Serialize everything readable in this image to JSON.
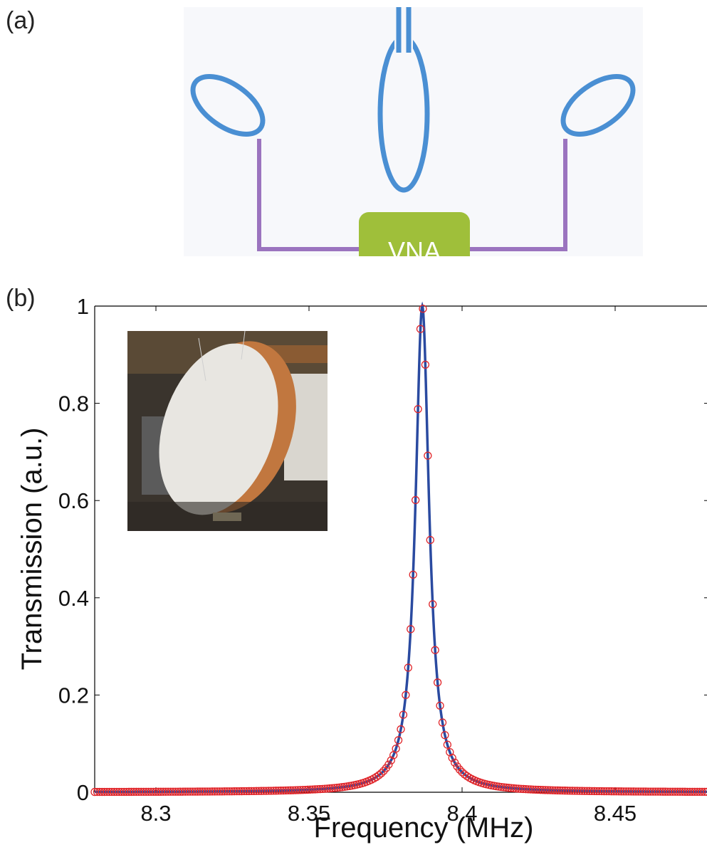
{
  "panels": {
    "a_label": "(a)",
    "b_label": "(b)"
  },
  "diagram": {
    "vna_label": "VNA",
    "colors": {
      "background": "#f7f8fb",
      "loop": "#4a8fd3",
      "cable": "#9b74bf",
      "vna_box": "#9fbf3a",
      "vna_text": "#ffffff"
    }
  },
  "chart_data": {
    "type": "scatter",
    "xlabel": "Frequency (MHz)",
    "ylabel": "Transmission (a.u.)",
    "xlim": [
      8.28,
      8.48
    ],
    "ylim": [
      0,
      1
    ],
    "xticks": [
      "8.3",
      "8.35",
      "8.4",
      "8.45"
    ],
    "xtick_values": [
      8.3,
      8.35,
      8.4,
      8.45
    ],
    "yticks": [
      "0",
      "0.2",
      "0.4",
      "0.6",
      "0.8",
      "1"
    ],
    "ytick_values": [
      0,
      0.2,
      0.4,
      0.6,
      0.8,
      1
    ],
    "grid": false,
    "series": [
      {
        "kind": "markers",
        "marker": "open-circle",
        "color": "#e0262b",
        "model": "lorentzian",
        "center": 8.387,
        "hwhm": 0.0027,
        "x_start": 8.28,
        "x_end": 8.48,
        "x_step": 0.0008
      },
      {
        "kind": "line",
        "color": "#2a4aa0",
        "model": "lorentzian",
        "center": 8.387,
        "hwhm": 0.0027
      }
    ]
  },
  "inset": {
    "description_icon": "coil-photo",
    "colors": {
      "disk": "#e8e6e1",
      "copper": "#c1773f",
      "background": "#3a342d"
    }
  }
}
